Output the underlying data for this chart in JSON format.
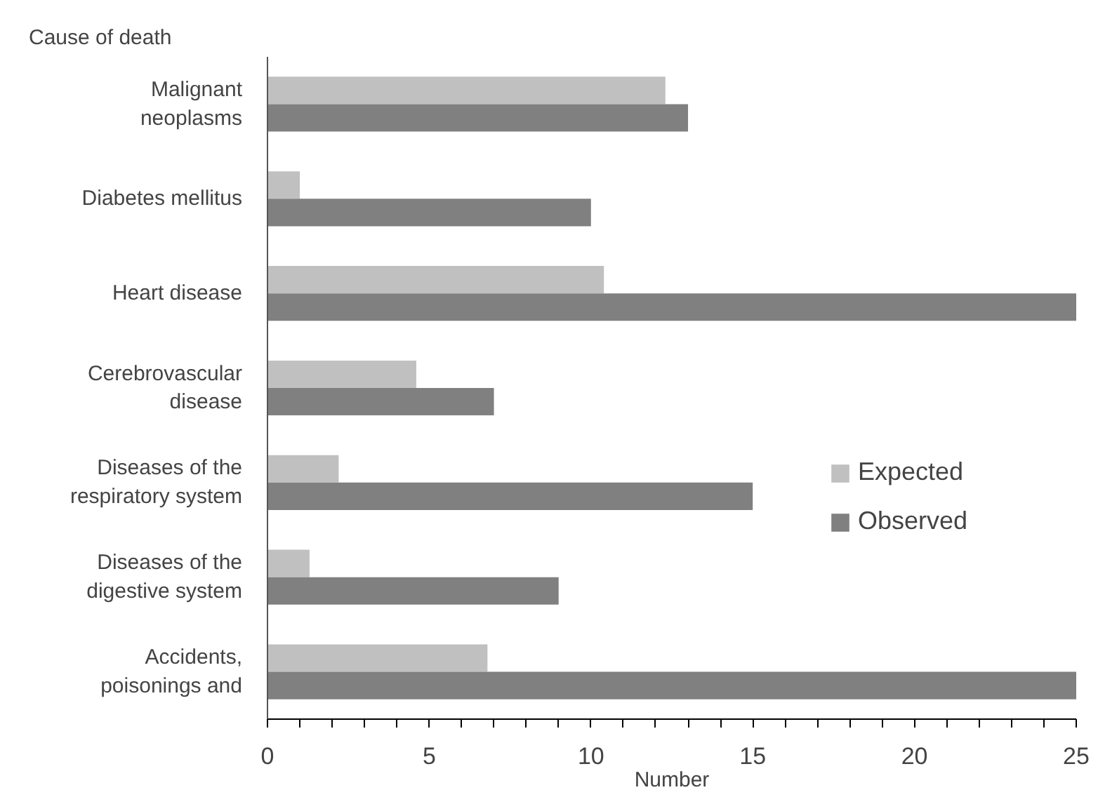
{
  "chart_data": {
    "type": "bar",
    "orientation": "horizontal",
    "xlabel": "Number",
    "ylabel": "Cause of death",
    "categories": [
      "Malignant neoplasms",
      "Diabetes mellitus",
      "Heart disease",
      "Cerebrovascular disease",
      "Diseases of the respiratory system",
      "Diseases of the digestive system",
      "Accidents, poisonings and"
    ],
    "series": [
      {
        "name": "Expected",
        "color": "#c0c0c0",
        "values": [
          12.3,
          1.0,
          10.4,
          4.6,
          2.2,
          1.3,
          6.8
        ]
      },
      {
        "name": "Observed",
        "color": "#808080",
        "values": [
          13.0,
          10.0,
          25,
          7.0,
          15.0,
          9.0,
          25
        ]
      }
    ],
    "xlim": [
      0,
      25
    ],
    "xticks": [
      0,
      {
        "value": 1,
        "label": null
      },
      {
        "value": 2,
        "label": null
      },
      {
        "value": 3,
        "label": null
      },
      {
        "value": 4,
        "label": null
      },
      5,
      {
        "value": 6,
        "label": null
      },
      {
        "value": 7,
        "label": null
      },
      {
        "value": 8,
        "label": null
      },
      {
        "value": 9,
        "label": null
      },
      10,
      {
        "value": 11,
        "label": null
      },
      {
        "value": 12,
        "label": null
      },
      {
        "value": 13,
        "label": null
      },
      {
        "value": 14,
        "label": null
      },
      15,
      {
        "value": 16,
        "label": null
      },
      {
        "value": 17,
        "label": null
      },
      {
        "value": 18,
        "label": null
      },
      {
        "value": 19,
        "label": null
      },
      20,
      {
        "value": 21,
        "label": null
      },
      {
        "value": 22,
        "label": null
      },
      {
        "value": 23,
        "label": null
      },
      {
        "value": 24,
        "label": null
      },
      25
    ],
    "grid": false,
    "legend": "right"
  }
}
